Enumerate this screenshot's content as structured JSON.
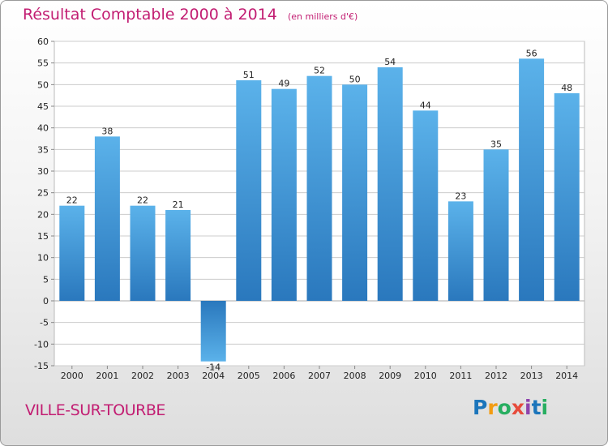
{
  "chart_data": {
    "type": "bar",
    "title": "Résultat Comptable 2000 à 2014",
    "subtitle": "(en milliers d'€)",
    "categories": [
      "2000",
      "2001",
      "2002",
      "2003",
      "2004",
      "2005",
      "2006",
      "2007",
      "2008",
      "2009",
      "2010",
      "2011",
      "2012",
      "2013",
      "2014"
    ],
    "values": [
      22,
      38,
      22,
      21,
      -14,
      51,
      49,
      52,
      50,
      54,
      44,
      23,
      35,
      56,
      48
    ],
    "ylim": [
      -15,
      60
    ],
    "yticks": [
      60,
      55,
      50,
      45,
      40,
      35,
      30,
      25,
      20,
      15,
      10,
      5,
      0,
      -5,
      -10,
      -15
    ],
    "xlabel": "",
    "ylabel": "",
    "grid": true,
    "bar_color": "#3b8fd3"
  },
  "footer": {
    "commune": "VILLE-SUR-TOURBE",
    "logo": "Proxiti",
    "logo_letters": [
      "P",
      "r",
      "o",
      "x",
      "i",
      "t",
      "i"
    ],
    "logo_colors": [
      "#1b75bb",
      "#f39c12",
      "#27ae60",
      "#e74c3c",
      "#8e44ad",
      "#1b75bb",
      "#27ae60"
    ]
  }
}
